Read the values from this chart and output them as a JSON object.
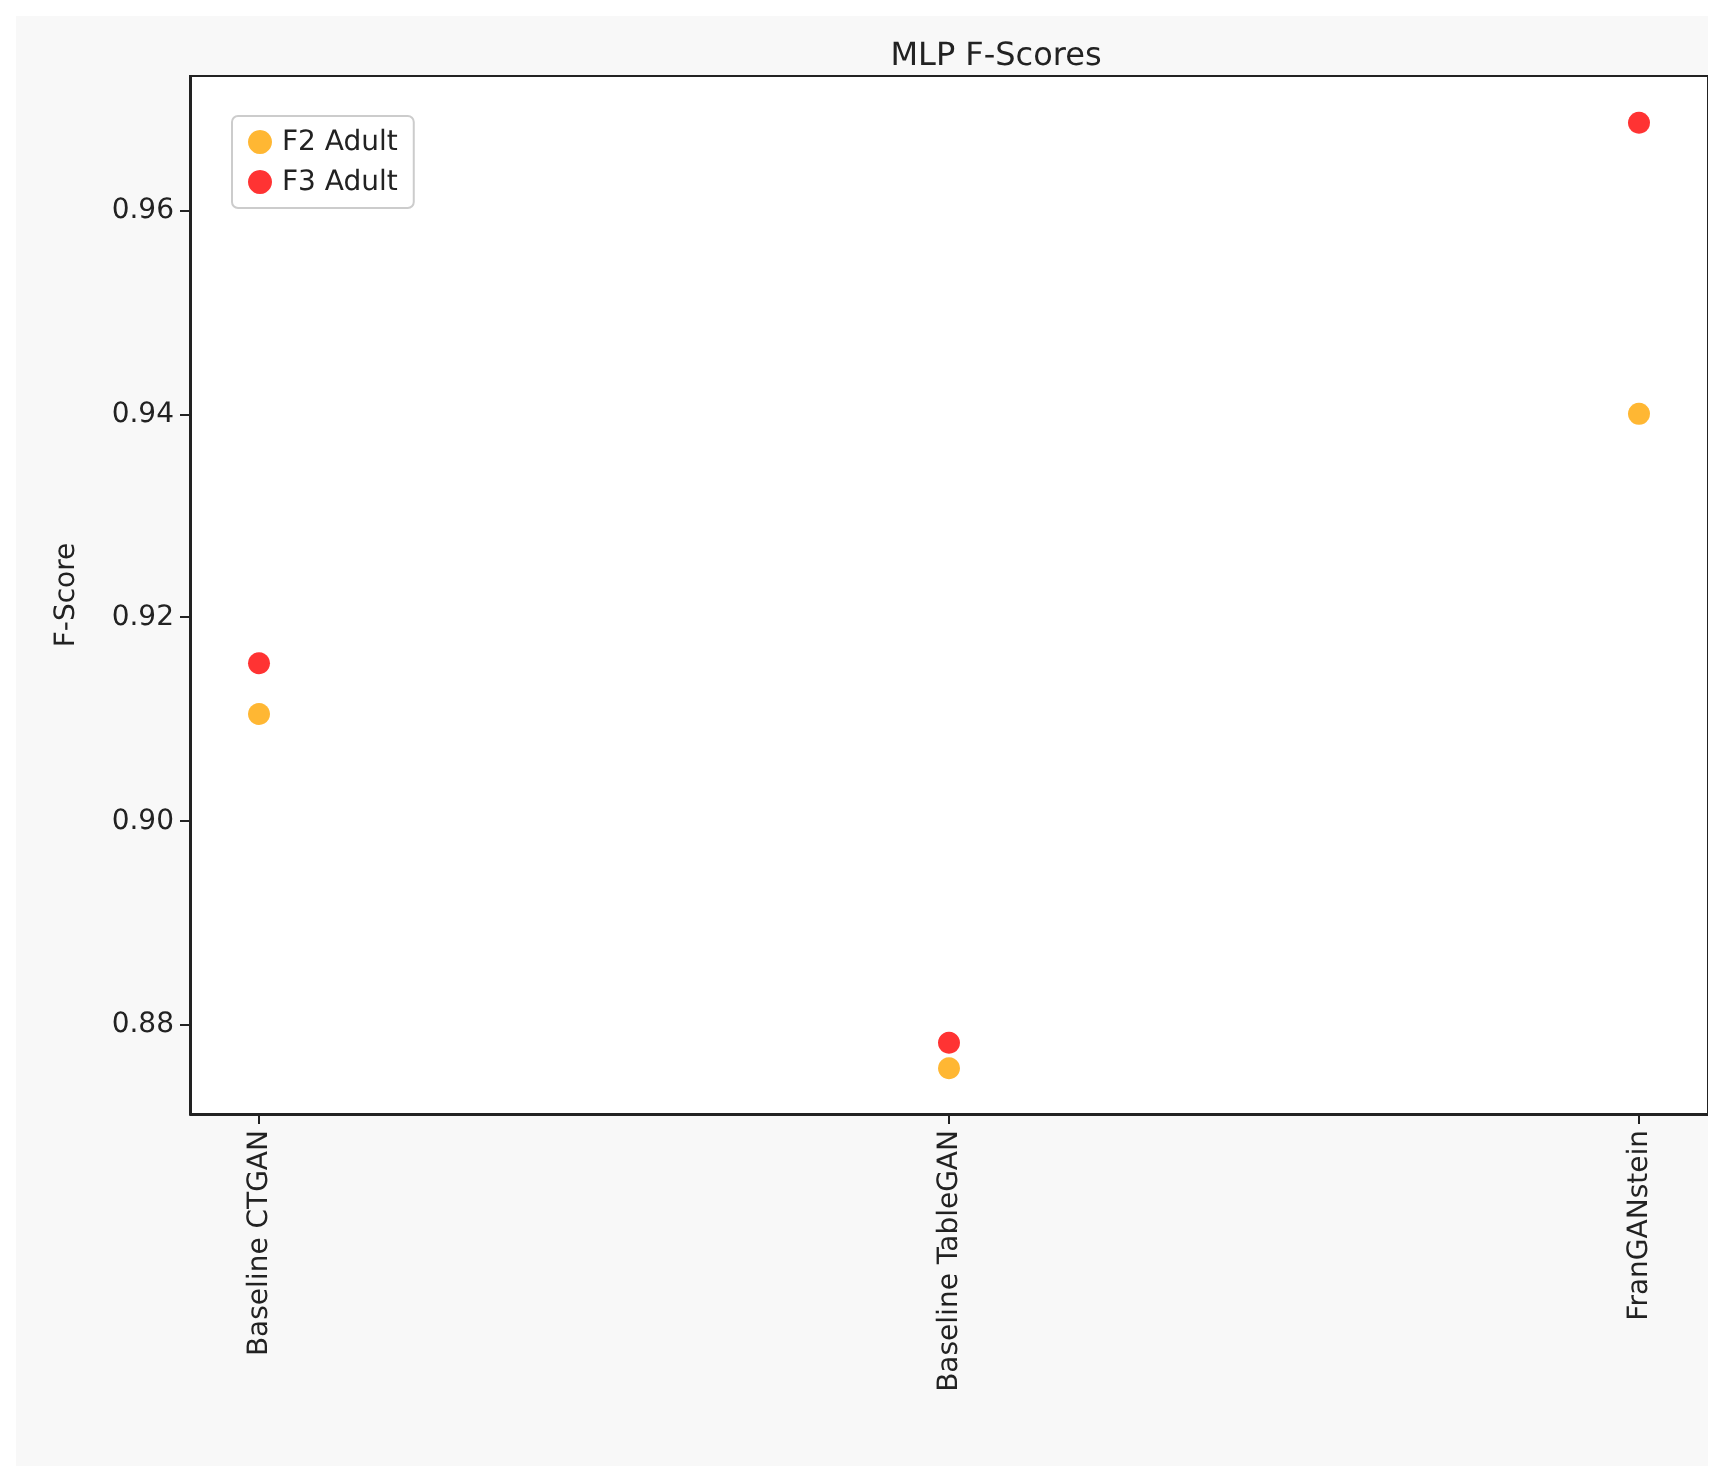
{
  "chart_data": {
    "type": "scatter",
    "title": "MLP F-Scores",
    "ylabel": "F-Score",
    "categories": [
      "Baseline CTGAN",
      "Baseline TableGAN",
      "FranGANstein"
    ],
    "series": [
      {
        "name": "F2 Adult",
        "color": "#ffa500",
        "values": [
          0.9105,
          0.8757,
          0.94
        ]
      },
      {
        "name": "F3 Adult",
        "color": "#ff0000",
        "values": [
          0.9155,
          0.8782,
          0.9686
        ]
      }
    ],
    "ylim": [
      0.8712,
      0.9732
    ],
    "yticks": [
      {
        "value": 0.88,
        "label": "0.88"
      },
      {
        "value": 0.9,
        "label": "0.90"
      },
      {
        "value": 0.92,
        "label": "0.92"
      },
      {
        "value": 0.94,
        "label": "0.94"
      },
      {
        "value": 0.96,
        "label": "0.96"
      }
    ],
    "grid": false,
    "legend": "top left",
    "marker": "circle"
  }
}
